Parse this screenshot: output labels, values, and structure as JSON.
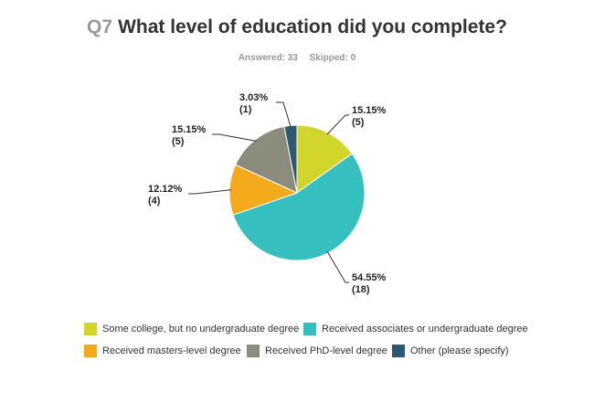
{
  "header": {
    "qnum": "Q7",
    "question": "What level of education did you complete?",
    "answered": "Answered: 33",
    "skipped": "Skipped: 0"
  },
  "chart_data": {
    "type": "pie",
    "title": "What level of education did you complete?",
    "slices": [
      {
        "name": "Some college, but no undergraduate degree",
        "value": 15.15,
        "count": 5,
        "color": "#d1d52c",
        "pct_label": "15.15%",
        "count_label": "(5)"
      },
      {
        "name": "Received associates or undergraduate degree",
        "value": 54.55,
        "count": 18,
        "color": "#36bfbf",
        "pct_label": "54.55%",
        "count_label": "(18)"
      },
      {
        "name": "Received masters-level degree",
        "value": 12.12,
        "count": 4,
        "color": "#f5aa1b",
        "pct_label": "12.12%",
        "count_label": "(4)"
      },
      {
        "name": "Received PhD-level degree",
        "value": 15.15,
        "count": 5,
        "color": "#8c8c7c",
        "pct_label": "15.15%",
        "count_label": "(5)"
      },
      {
        "name": "Other (please specify)",
        "value": 3.03,
        "count": 1,
        "color": "#2b5a6e",
        "pct_label": "3.03%",
        "count_label": "(1)"
      }
    ],
    "legend_position": "bottom"
  }
}
